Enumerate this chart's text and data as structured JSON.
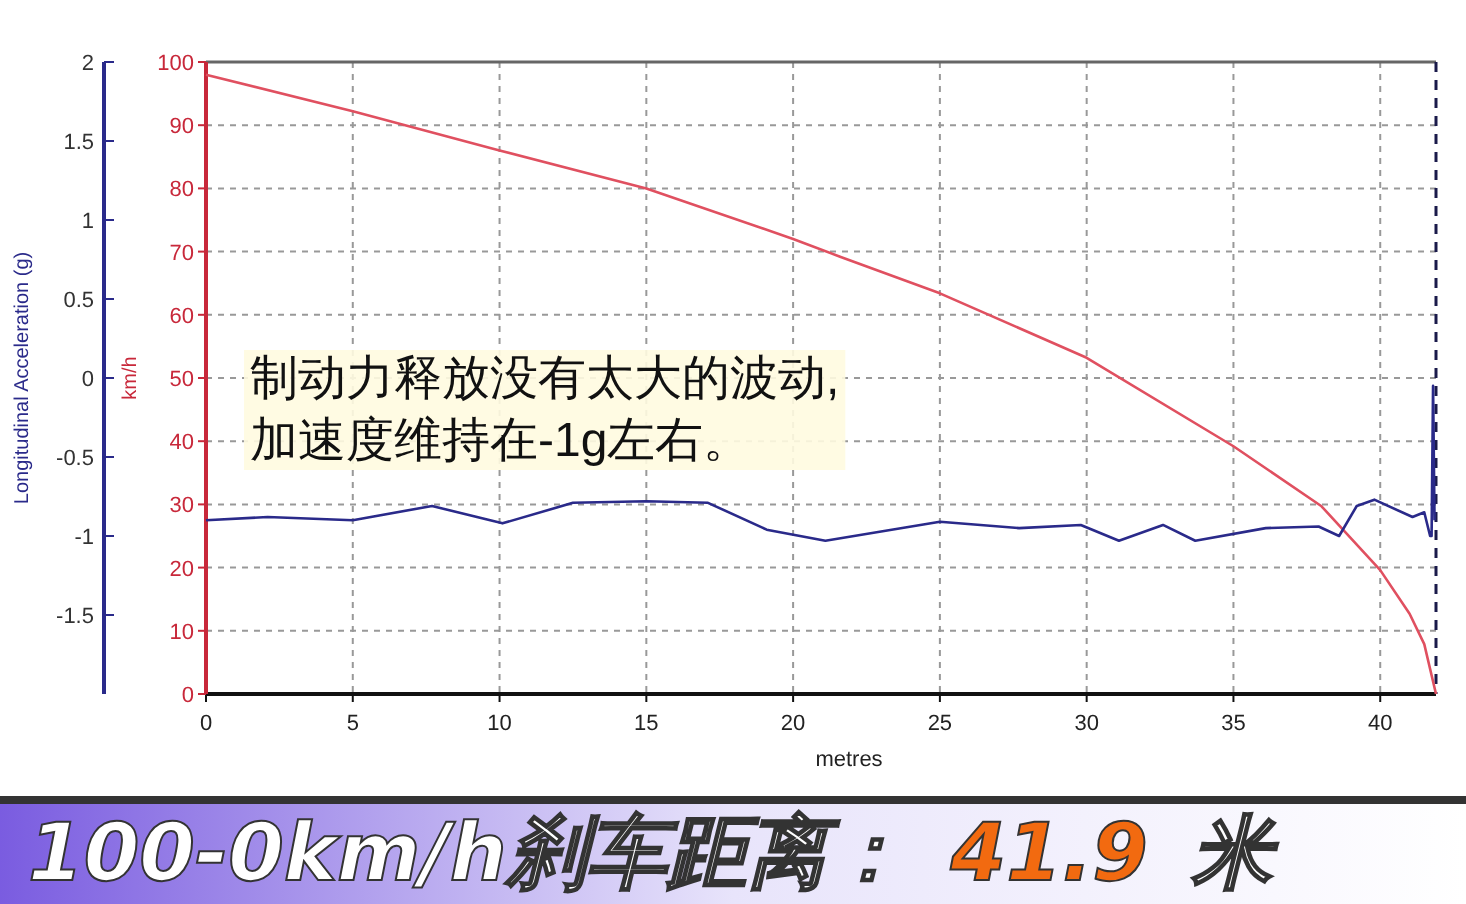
{
  "chart_data": {
    "type": "line",
    "xlabel": "metres",
    "ylabel": "km/h",
    "y2label": "Longitudinal Acceleration (g)",
    "xlim": [
      0,
      41.9
    ],
    "xticks": [
      0,
      5,
      10,
      15,
      20,
      25,
      30,
      35,
      40
    ],
    "ylim": [
      0,
      100
    ],
    "yticks": [
      0,
      10,
      20,
      30,
      40,
      50,
      60,
      70,
      80,
      90,
      100
    ],
    "y2lim": [
      -2,
      2
    ],
    "y2ticks": [
      -1.5,
      -1,
      -0.5,
      0,
      0.5,
      1,
      1.5,
      2
    ],
    "grid": true,
    "marker": "none",
    "line_style": "solid",
    "ref_lines": [
      {
        "axis": "x",
        "value": 41.9,
        "color": "#1a1a4a",
        "line_style": "dashed"
      }
    ],
    "series": [
      {
        "color": "#e05060",
        "axis": "y",
        "x": [
          0,
          5,
          10,
          15,
          20,
          21.6,
          25,
          30,
          35,
          38,
          40,
          41,
          41.5,
          41.9
        ],
        "values": [
          98,
          92.2,
          86,
          80,
          72,
          69.2,
          63.4,
          53.2,
          39.2,
          29.7,
          19.6,
          12.7,
          7.9,
          0
        ]
      },
      {
        "color": "#2a2a8a",
        "axis": "y2",
        "x": [
          0,
          2.1,
          5,
          7.7,
          10.1,
          12.5,
          15,
          17.1,
          19.1,
          21.1,
          25,
          27.7,
          29.8,
          31.1,
          32.6,
          33.7,
          36.1,
          37.9,
          38.6,
          39.2,
          39.8,
          41.1,
          41.5,
          41.7,
          41.75,
          41.8,
          41.85
        ],
        "values": [
          -0.9,
          -0.88,
          -0.9,
          -0.81,
          -0.92,
          -0.79,
          -0.78,
          -0.79,
          -0.96,
          -1.03,
          -0.91,
          -0.95,
          -0.93,
          -1.03,
          -0.93,
          -1.03,
          -0.95,
          -0.94,
          -1.0,
          -0.81,
          -0.77,
          -0.88,
          -0.85,
          -1.0,
          -1.0,
          -0.05,
          -0.9
        ]
      }
    ],
    "annotations": [
      "制动力释放没有太大的波动,\n加速度维持在-1g左右。",
      "100-0km/h刹车距离：",
      "41.9",
      "米"
    ]
  }
}
